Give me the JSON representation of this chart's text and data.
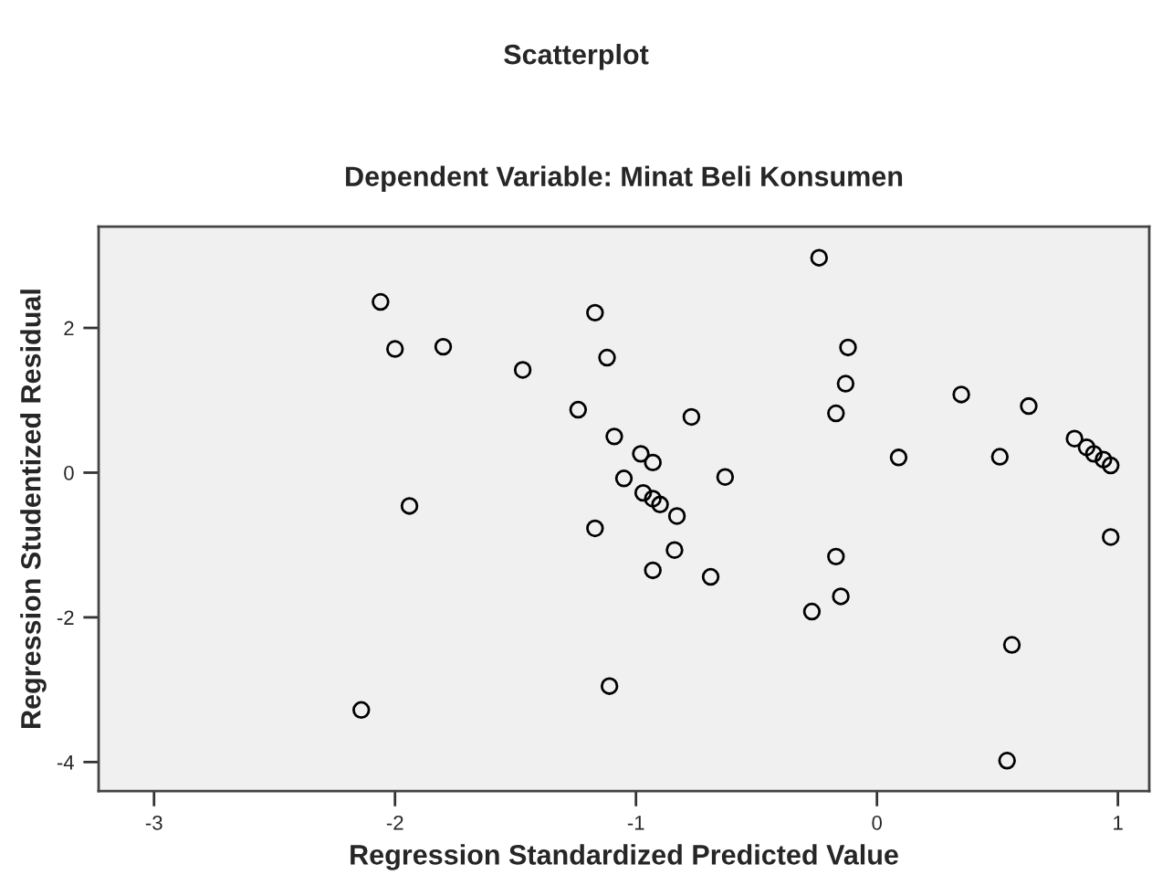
{
  "chart_data": {
    "type": "scatter",
    "title": "Scatterplot",
    "subtitle": "Dependent Variable: Minat Beli Konsumen",
    "xlabel": "Regression Standardized Predicted Value",
    "ylabel": "Regression Studentized Residual",
    "x": [
      -2.06,
      -2.0,
      -1.8,
      -1.47,
      -1.24,
      -1.17,
      -1.12,
      -1.09,
      -0.98,
      -0.93,
      -1.05,
      -0.97,
      -0.93,
      -0.9,
      -0.83,
      -0.77,
      -0.63,
      -0.84,
      -0.93,
      -0.69,
      -0.24,
      -0.12,
      -0.13,
      -0.17,
      0.09,
      -0.17,
      0.35,
      0.63,
      0.51,
      0.82,
      0.87,
      0.9,
      0.94,
      0.97,
      0.97,
      -0.15,
      -0.27,
      0.56,
      0.54,
      -1.11,
      -2.14,
      -1.17,
      -1.94
    ],
    "series": [
      {
        "color": "#000000",
        "values": [
          2.36,
          1.71,
          1.74,
          1.42,
          0.87,
          2.21,
          1.59,
          0.5,
          0.26,
          0.14,
          -0.08,
          -0.28,
          -0.36,
          -0.44,
          -0.6,
          0.77,
          -0.06,
          -1.07,
          -1.35,
          -1.44,
          2.97,
          1.73,
          1.23,
          0.82,
          0.21,
          -1.16,
          1.08,
          0.92,
          0.22,
          0.47,
          0.35,
          0.26,
          0.18,
          0.1,
          -0.89,
          -1.71,
          -1.92,
          -2.38,
          -3.98,
          -2.95,
          -3.28,
          -0.77,
          -0.46
        ]
      }
    ],
    "xlim": [
      -3.23,
      1.13
    ],
    "ylim": [
      -4.4,
      3.4
    ],
    "xticks": [
      -3,
      -2,
      -1,
      0,
      1
    ],
    "yticks": [
      -4,
      -2,
      0,
      2
    ],
    "grid": false,
    "legend": false,
    "marker": "circle"
  }
}
